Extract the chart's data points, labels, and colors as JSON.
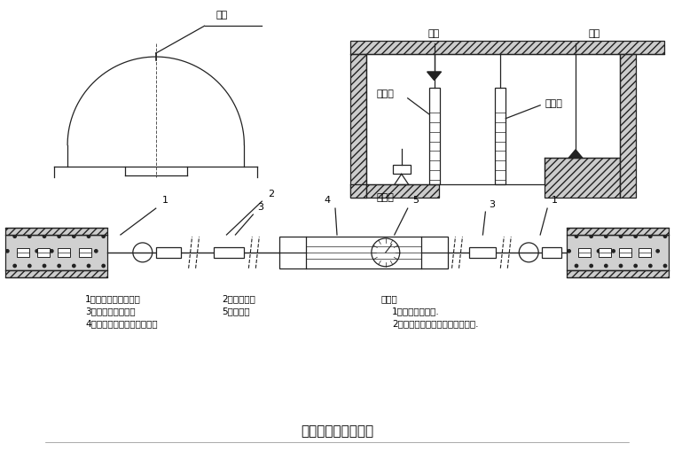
{
  "title": "主要量测方法示意图",
  "title_fontsize": 11,
  "line_color": "#222222",
  "labels": {
    "cedian_top": "测点",
    "zhuandian": "转点",
    "cedian_right": "测点",
    "shuizhunchi": "水准尺",
    "ceduanchi": "侧缝尺",
    "shuipingyi": "水平仪",
    "legend_title": "说明：",
    "legend_1": "1、洞内观察未述.",
    "legend_2": "2、其它量测项目按有关说明实施.",
    "parts_1": "1、净空变位仪矩锚杆",
    "parts_2": "2、带孔钢尺",
    "parts_3": "3、有球铰的连接杆",
    "parts_5": "5、百分表",
    "parts_4": "4、维持张拉钢尺拉力的装置"
  },
  "font_zh": [
    "SimHei",
    "WenQuanYi Micro Hei",
    "Noto Sans CJK SC",
    "DejaVu Sans"
  ],
  "font_fallback": "sans-serif"
}
